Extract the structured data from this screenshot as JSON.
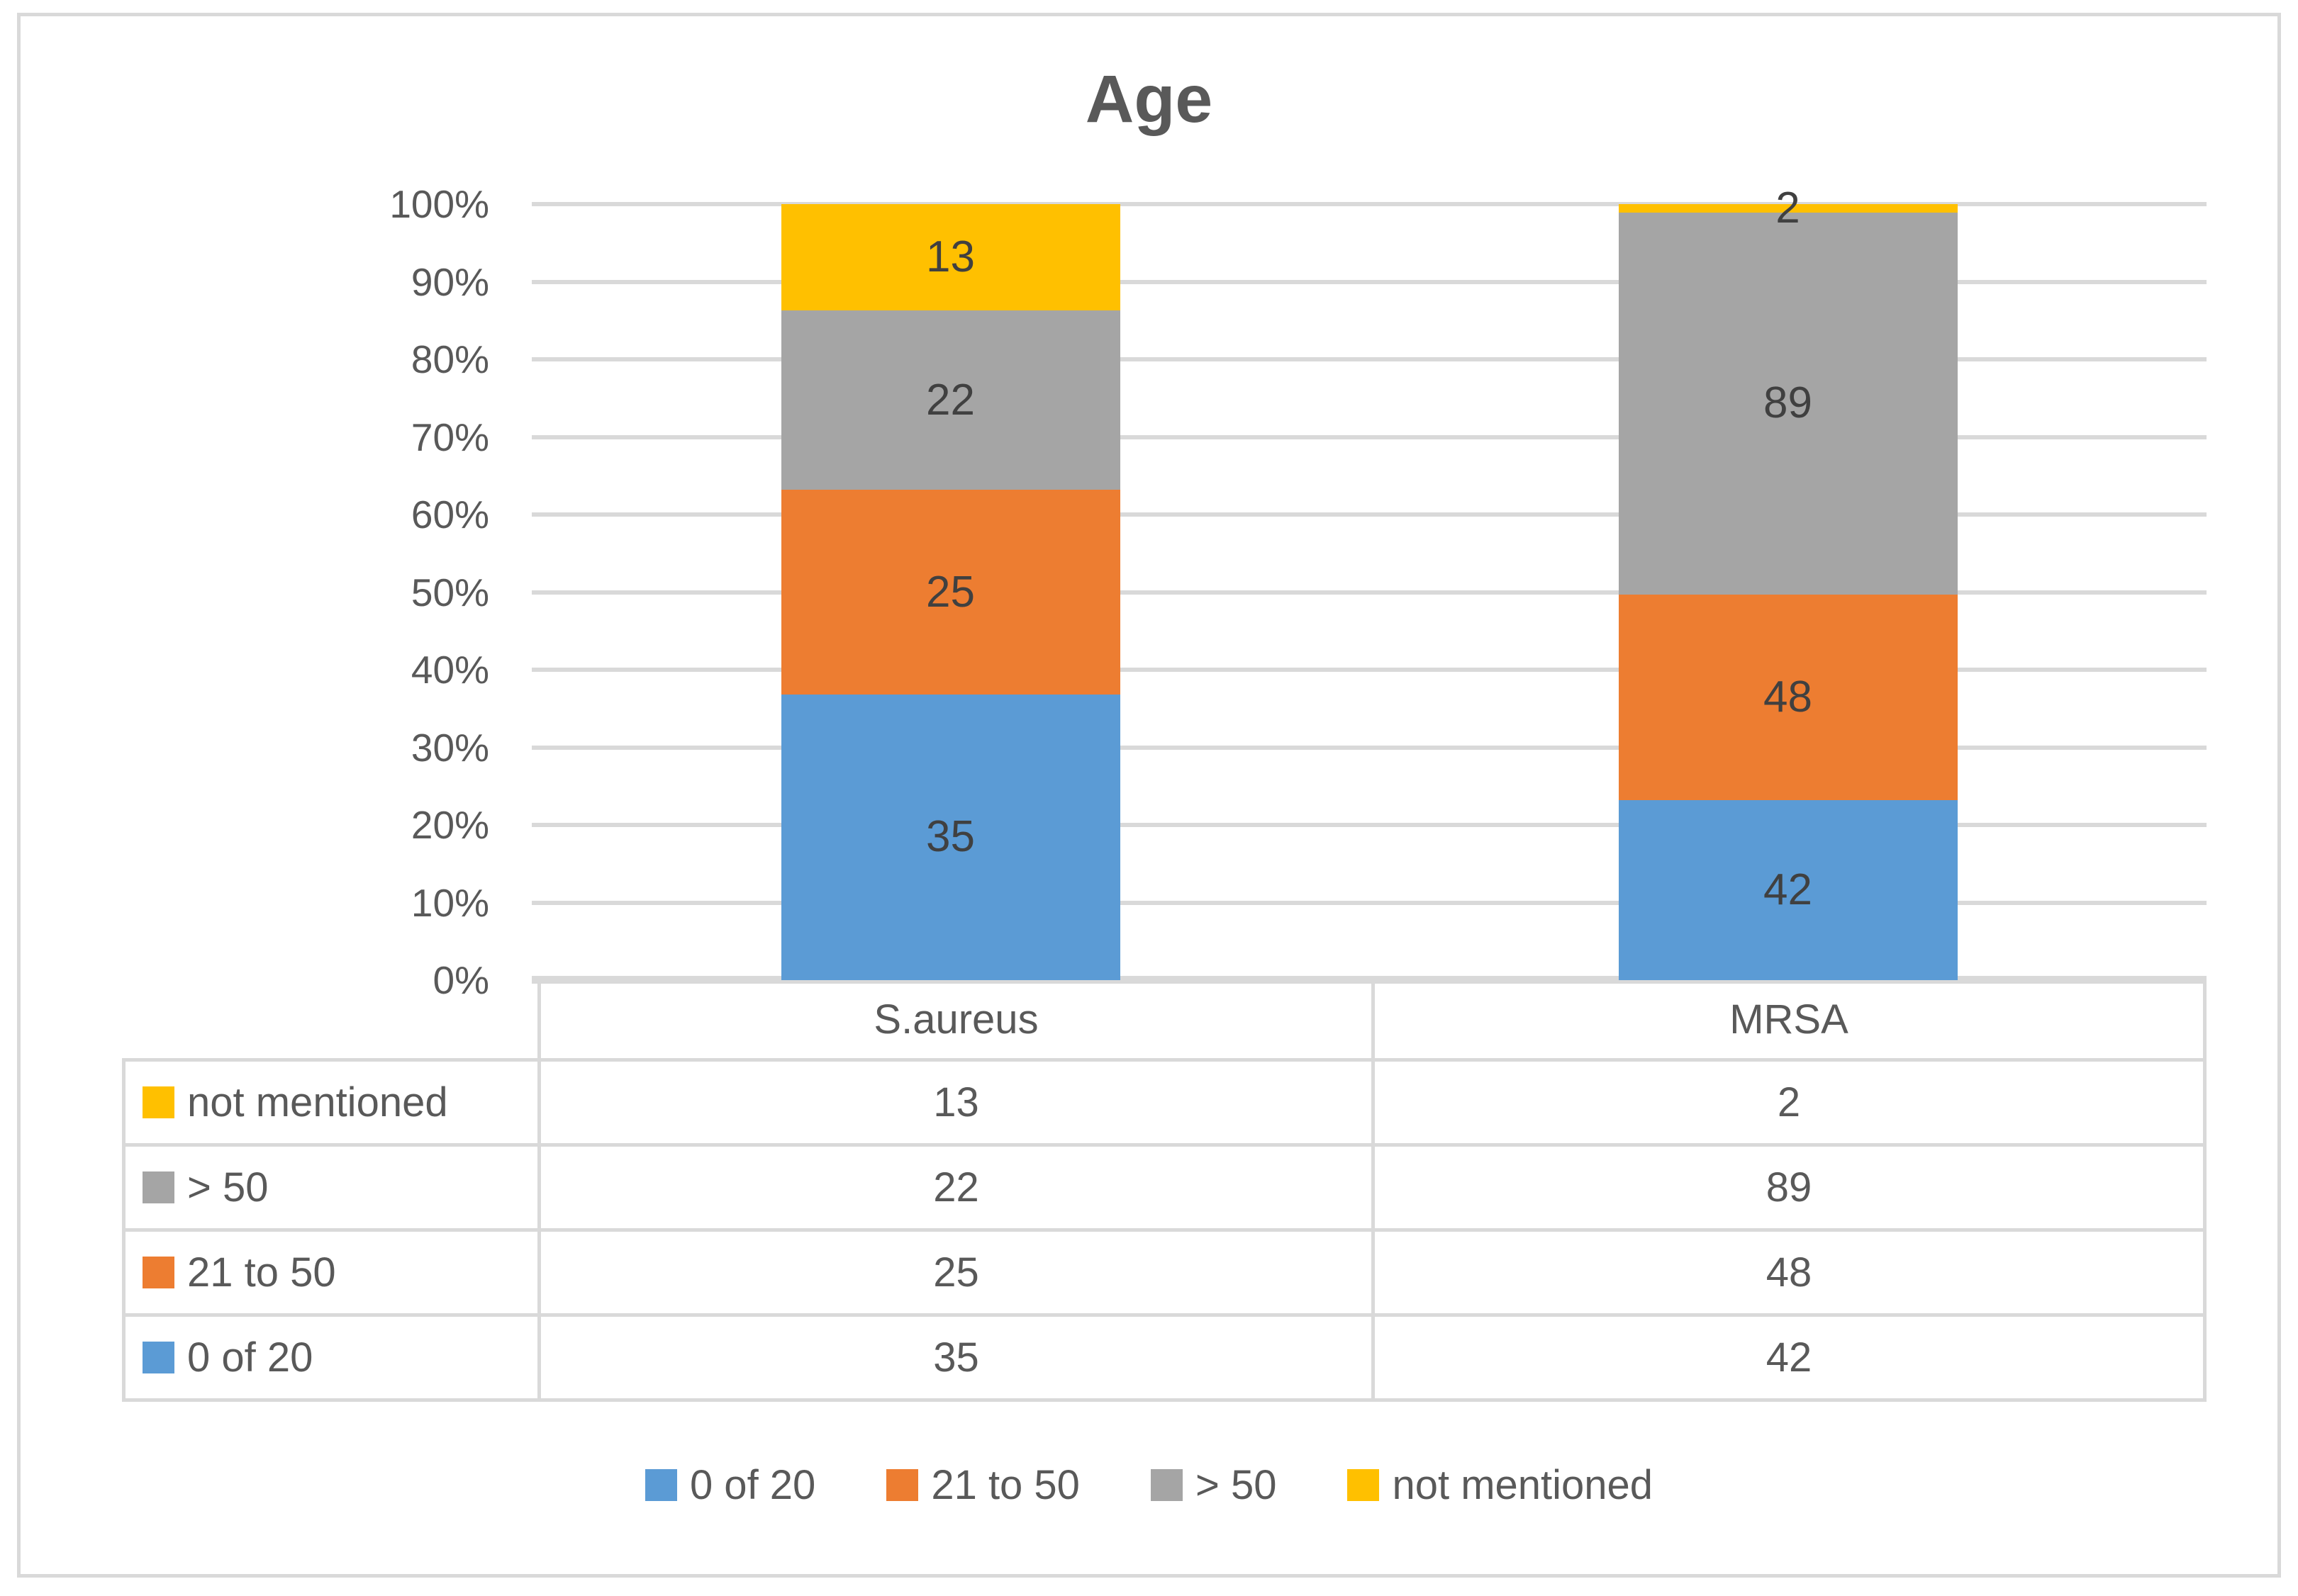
{
  "chart_data": {
    "type": "bar",
    "subtype": "stacked-100-percent-column",
    "title": "Age",
    "categories": [
      "S.aureus",
      "MRSA"
    ],
    "series": [
      {
        "name": "0 of 20",
        "color": "#5B9BD5",
        "values": [
          35,
          42
        ]
      },
      {
        "name": "21 to 50",
        "color": "#ED7D31",
        "values": [
          25,
          48
        ]
      },
      {
        "name": "> 50",
        "color": "#A5A5A5",
        "values": [
          22,
          89
        ]
      },
      {
        "name": "not mentioned",
        "color": "#FFC000",
        "values": [
          13,
          2
        ]
      }
    ],
    "y_axis": {
      "min": 0,
      "max": 100,
      "unit": "%",
      "ticks": [
        "0%",
        "10%",
        "20%",
        "30%",
        "40%",
        "50%",
        "60%",
        "70%",
        "80%",
        "90%",
        "100%"
      ]
    },
    "gridlines": true,
    "legend_position": "bottom",
    "data_table_shown": true,
    "data_table_row_order_top_to_bottom": [
      "not mentioned",
      "> 50",
      "21 to 50",
      "0 of 20"
    ]
  },
  "colors": {
    "text": "#595959",
    "data_label": "#404040",
    "gridline": "#D9D9D9",
    "table_border": "#D9D9D9",
    "background": "#FFFFFF"
  }
}
